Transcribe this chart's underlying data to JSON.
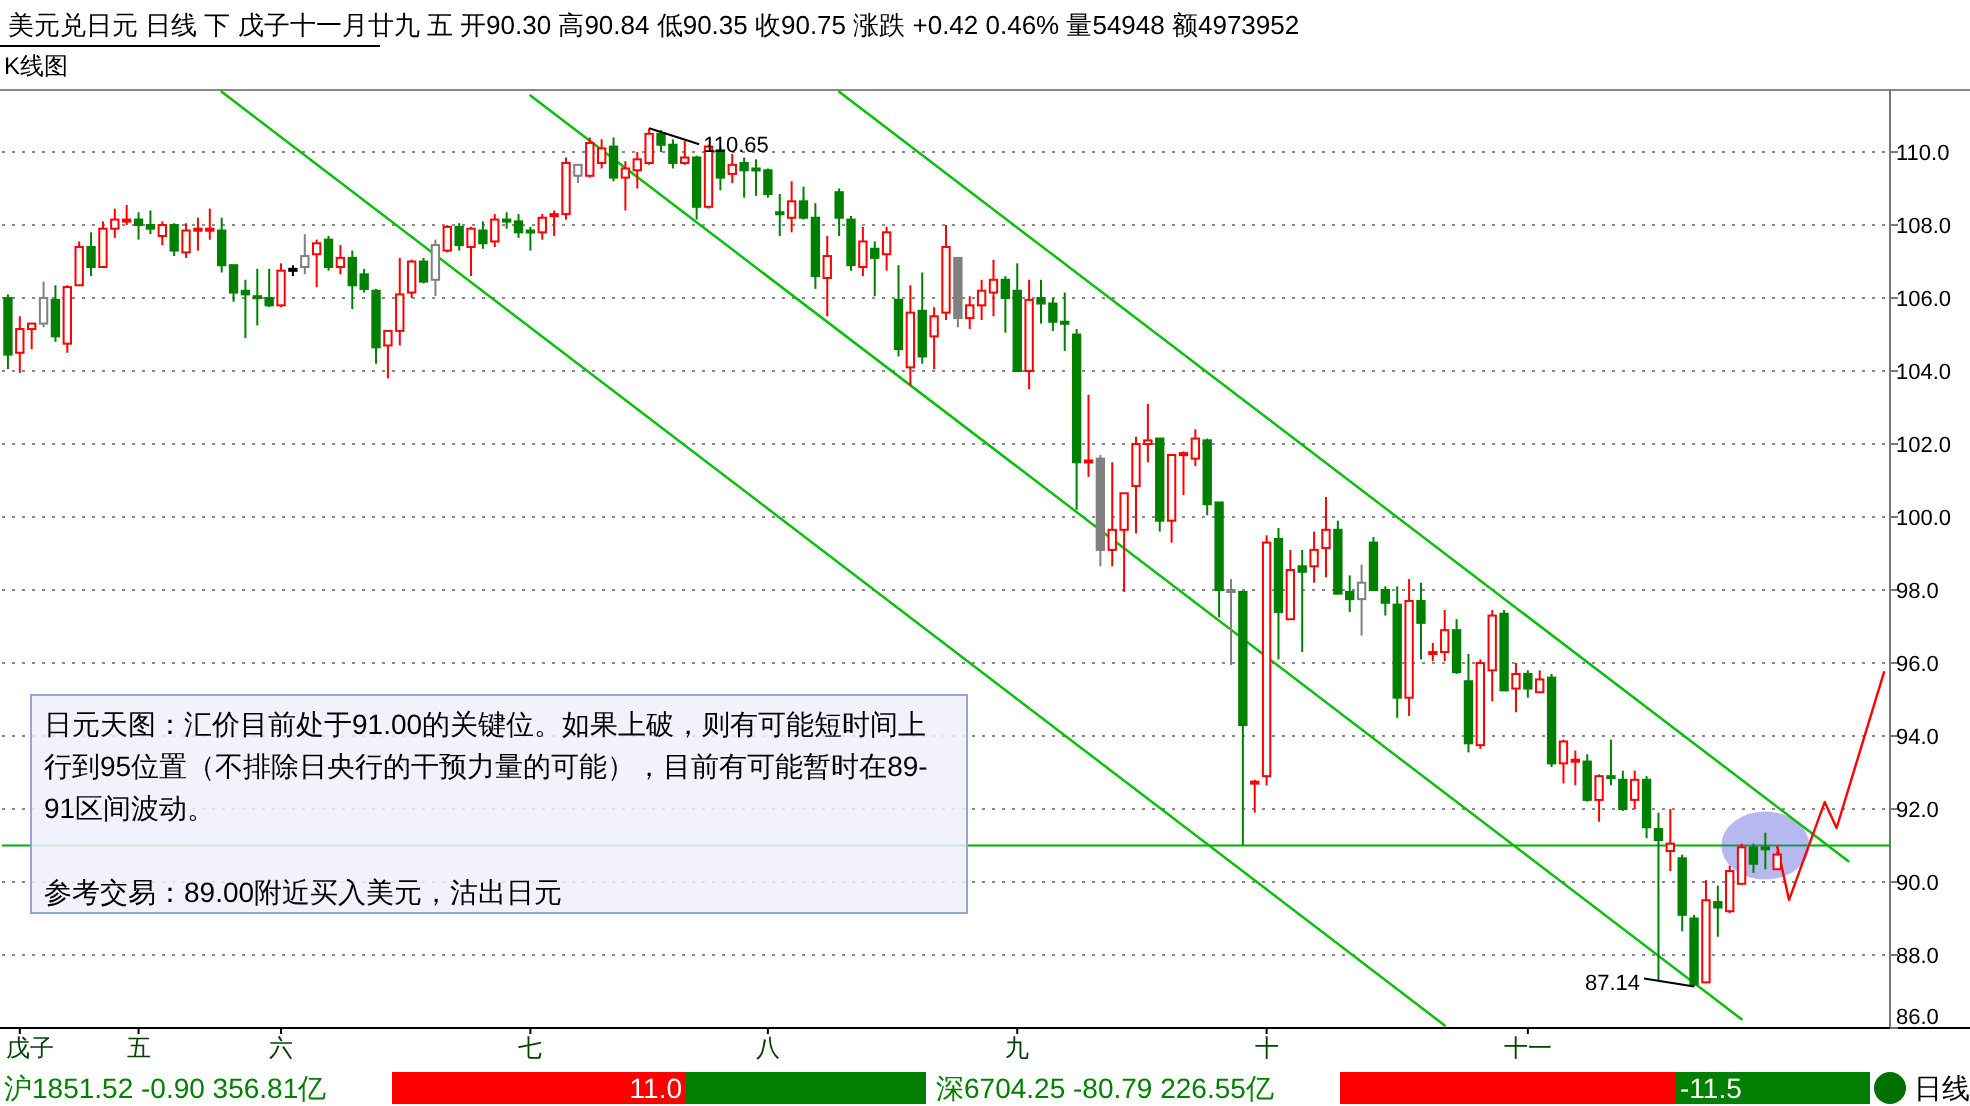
{
  "chart_data": {
    "type": "candlestick",
    "title": "美元兑日元  日线  下  戊子十一月廿九  五  开90.30 高90.84 低90.35 收90.75 涨跌  +0.42  0.46% 量54948 额4973952",
    "subtitle": "K线图",
    "categories": [
      null,
      "戊子",
      null,
      null,
      null,
      null,
      null,
      null,
      null,
      null,
      null,
      "五",
      null,
      null,
      null,
      null,
      null,
      null,
      null,
      null,
      null,
      null,
      null,
      "六",
      null,
      null,
      null,
      null,
      null,
      null,
      null,
      null,
      null,
      null,
      null,
      null,
      null,
      null,
      null,
      null,
      null,
      null,
      null,
      null,
      "七",
      null,
      null,
      null,
      null,
      null,
      null,
      null,
      null,
      null,
      null,
      null,
      null,
      null,
      null,
      null,
      null,
      null,
      null,
      null,
      "八",
      null,
      null,
      null,
      null,
      null,
      null,
      null,
      null,
      null,
      null,
      null,
      null,
      null,
      null,
      null,
      null,
      null,
      null,
      null,
      null,
      "九",
      null,
      null,
      null,
      null,
      null,
      null,
      null,
      null,
      null,
      null,
      null,
      null,
      null,
      null,
      null,
      null,
      null,
      null,
      null,
      null,
      "十",
      null,
      null,
      null,
      null,
      null,
      null,
      null,
      null,
      null,
      null,
      null,
      null,
      null,
      null,
      null,
      null,
      null,
      null,
      null,
      null,
      null,
      "十一",
      null,
      null,
      null,
      null,
      null,
      null,
      null,
      null,
      null,
      null,
      null,
      null,
      null,
      null,
      null,
      null,
      null,
      null,
      null,
      null,
      null,
      null,
      null,
      null,
      null,
      null,
      null,
      null,
      null,
      null
    ],
    "ohlc": [
      [
        106.0,
        106.1,
        104.05,
        104.45
      ],
      [
        104.5,
        105.5,
        103.95,
        105.15
      ],
      [
        105.15,
        105.3,
        104.6,
        105.3
      ],
      [
        105.3,
        106.45,
        105.2,
        106.0
      ],
      [
        105.95,
        106.35,
        104.8,
        104.95
      ],
      [
        104.75,
        106.35,
        104.5,
        106.3
      ],
      [
        106.35,
        107.55,
        106.35,
        107.4
      ],
      [
        107.4,
        107.8,
        106.6,
        106.85
      ],
      [
        106.85,
        108.1,
        106.85,
        107.9
      ],
      [
        107.9,
        108.45,
        107.65,
        108.15
      ],
      [
        108.1,
        108.55,
        108.0,
        108.15
      ],
      [
        108.15,
        108.35,
        107.6,
        108.0
      ],
      [
        108.0,
        108.4,
        107.75,
        107.9
      ],
      [
        107.7,
        108.1,
        107.45,
        108.0
      ],
      [
        108.0,
        108.05,
        107.15,
        107.3
      ],
      [
        107.25,
        108.05,
        107.1,
        107.85
      ],
      [
        107.85,
        108.2,
        107.3,
        107.9
      ],
      [
        107.85,
        108.45,
        107.6,
        107.9
      ],
      [
        107.85,
        108.2,
        106.7,
        106.9
      ],
      [
        106.9,
        106.9,
        105.9,
        106.15
      ],
      [
        106.2,
        106.5,
        104.9,
        106.1
      ],
      [
        106.05,
        106.8,
        105.25,
        106.0
      ],
      [
        106.0,
        106.8,
        105.75,
        105.8
      ],
      [
        105.8,
        106.95,
        105.75,
        106.75
      ],
      [
        106.75,
        106.9,
        106.6,
        106.8
      ],
      [
        106.85,
        107.75,
        106.65,
        107.15
      ],
      [
        107.2,
        107.6,
        106.3,
        107.5
      ],
      [
        107.6,
        107.7,
        106.75,
        106.85
      ],
      [
        106.85,
        107.45,
        106.65,
        107.1
      ],
      [
        107.1,
        107.3,
        105.7,
        106.35
      ],
      [
        106.65,
        106.8,
        106.15,
        106.25
      ],
      [
        106.2,
        106.25,
        104.2,
        104.65
      ],
      [
        104.7,
        105.1,
        103.8,
        105.1
      ],
      [
        105.1,
        107.1,
        104.7,
        106.1
      ],
      [
        106.15,
        107.05,
        106.0,
        107.0
      ],
      [
        107.0,
        107.1,
        106.4,
        106.45
      ],
      [
        106.5,
        107.6,
        106.05,
        107.45
      ],
      [
        107.3,
        108.0,
        107.25,
        107.95
      ],
      [
        107.95,
        108.05,
        107.3,
        107.45
      ],
      [
        107.4,
        107.95,
        106.6,
        107.9
      ],
      [
        107.85,
        108.1,
        107.35,
        107.5
      ],
      [
        107.55,
        108.3,
        107.4,
        108.15
      ],
      [
        108.15,
        108.35,
        107.9,
        108.1
      ],
      [
        108.1,
        108.3,
        107.65,
        107.8
      ],
      [
        107.85,
        107.95,
        107.3,
        107.8
      ],
      [
        107.8,
        108.3,
        107.6,
        108.2
      ],
      [
        108.25,
        108.4,
        107.7,
        108.3
      ],
      [
        108.3,
        109.85,
        108.15,
        109.7
      ],
      [
        109.35,
        109.65,
        109.15,
        109.65
      ],
      [
        109.35,
        110.4,
        109.3,
        110.25
      ],
      [
        109.7,
        110.35,
        109.55,
        110.1
      ],
      [
        110.15,
        110.4,
        109.2,
        109.3
      ],
      [
        109.3,
        109.75,
        108.4,
        109.55
      ],
      [
        109.5,
        110.0,
        109.0,
        109.8
      ],
      [
        109.7,
        110.65,
        109.65,
        110.5
      ],
      [
        110.5,
        110.6,
        110.0,
        110.2
      ],
      [
        110.2,
        110.35,
        109.55,
        109.7
      ],
      [
        109.7,
        110.3,
        109.65,
        109.85
      ],
      [
        109.85,
        109.9,
        108.15,
        108.5
      ],
      [
        108.5,
        110.2,
        108.45,
        110.15
      ],
      [
        110.05,
        110.15,
        108.95,
        109.3
      ],
      [
        109.4,
        109.95,
        109.15,
        109.65
      ],
      [
        109.7,
        109.85,
        108.75,
        109.5
      ],
      [
        109.55,
        109.8,
        108.8,
        109.5
      ],
      [
        109.5,
        109.55,
        108.75,
        108.85
      ],
      [
        108.35,
        108.85,
        107.7,
        108.3
      ],
      [
        108.2,
        109.2,
        107.8,
        108.65
      ],
      [
        108.65,
        109.05,
        108.15,
        108.2
      ],
      [
        108.2,
        108.6,
        106.25,
        106.6
      ],
      [
        106.55,
        107.7,
        105.5,
        107.15
      ],
      [
        108.9,
        109.0,
        107.7,
        108.2
      ],
      [
        108.15,
        108.25,
        106.75,
        106.9
      ],
      [
        106.85,
        107.95,
        106.6,
        107.55
      ],
      [
        107.35,
        107.55,
        106.05,
        107.1
      ],
      [
        107.2,
        107.95,
        106.75,
        107.8
      ],
      [
        105.95,
        106.9,
        104.4,
        104.6
      ],
      [
        104.1,
        106.35,
        103.6,
        105.6
      ],
      [
        105.65,
        106.7,
        104.2,
        104.4
      ],
      [
        104.95,
        105.75,
        104.05,
        105.5
      ],
      [
        105.6,
        108.0,
        105.4,
        107.4
      ],
      [
        107.1,
        107.1,
        105.2,
        105.45
      ],
      [
        105.45,
        106.05,
        105.15,
        105.8
      ],
      [
        105.8,
        106.5,
        105.4,
        106.2
      ],
      [
        106.15,
        107.05,
        105.5,
        106.5
      ],
      [
        106.5,
        106.6,
        105.05,
        106.0
      ],
      [
        106.2,
        106.95,
        104.0,
        104.0
      ],
      [
        104.0,
        106.5,
        103.5,
        105.95
      ],
      [
        106.0,
        106.5,
        105.3,
        105.85
      ],
      [
        105.85,
        106.0,
        105.1,
        105.35
      ],
      [
        105.35,
        106.15,
        104.55,
        105.3
      ],
      [
        105.0,
        105.15,
        100.2,
        101.5
      ],
      [
        101.5,
        103.35,
        101.1,
        101.55
      ],
      [
        101.6,
        101.7,
        98.65,
        99.1
      ],
      [
        99.1,
        101.5,
        98.65,
        99.65
      ],
      [
        99.65,
        100.65,
        97.95,
        100.65
      ],
      [
        100.85,
        102.2,
        99.55,
        102.0
      ],
      [
        102.0,
        103.1,
        101.5,
        102.1
      ],
      [
        102.15,
        102.15,
        99.6,
        99.9
      ],
      [
        99.9,
        101.7,
        99.3,
        101.7
      ],
      [
        101.7,
        101.8,
        100.6,
        101.75
      ],
      [
        101.6,
        102.4,
        101.4,
        102.15
      ],
      [
        102.1,
        102.15,
        100.05,
        100.35
      ],
      [
        100.4,
        100.4,
        97.25,
        98.0
      ],
      [
        98.0,
        98.3,
        95.95,
        97.95
      ],
      [
        97.95,
        97.95,
        91.0,
        94.3
      ],
      [
        92.7,
        92.8,
        91.9,
        92.75
      ],
      [
        92.9,
        99.5,
        92.65,
        99.3
      ],
      [
        99.4,
        99.7,
        96.1,
        97.4
      ],
      [
        97.2,
        99.1,
        97.2,
        98.55
      ],
      [
        98.65,
        99.1,
        96.3,
        98.5
      ],
      [
        98.65,
        99.6,
        98.2,
        99.1
      ],
      [
        99.15,
        100.55,
        98.35,
        99.65
      ],
      [
        99.65,
        99.9,
        97.9,
        97.9
      ],
      [
        97.95,
        98.4,
        97.4,
        97.75
      ],
      [
        97.75,
        98.7,
        96.75,
        98.2
      ],
      [
        99.3,
        99.45,
        98.0,
        98.0
      ],
      [
        98.0,
        98.1,
        97.3,
        97.65
      ],
      [
        97.6,
        98.1,
        94.5,
        95.05
      ],
      [
        95.05,
        98.3,
        94.55,
        97.7
      ],
      [
        97.7,
        98.2,
        96.1,
        97.1
      ],
      [
        96.25,
        96.55,
        96.05,
        96.3
      ],
      [
        96.3,
        97.45,
        96.05,
        96.9
      ],
      [
        96.9,
        97.2,
        95.7,
        95.75
      ],
      [
        95.5,
        96.25,
        93.55,
        93.8
      ],
      [
        93.75,
        96.1,
        93.65,
        96.0
      ],
      [
        95.8,
        97.45,
        94.95,
        97.3
      ],
      [
        97.35,
        97.45,
        95.25,
        95.25
      ],
      [
        95.3,
        96.0,
        94.65,
        95.7
      ],
      [
        95.7,
        95.8,
        95.05,
        95.3
      ],
      [
        95.2,
        95.8,
        95.2,
        95.55
      ],
      [
        95.6,
        95.7,
        93.15,
        93.25
      ],
      [
        93.25,
        93.9,
        92.7,
        93.85
      ],
      [
        93.3,
        93.6,
        92.65,
        93.35
      ],
      [
        93.3,
        93.5,
        92.2,
        92.25
      ],
      [
        92.25,
        92.95,
        91.65,
        92.9
      ],
      [
        92.9,
        93.9,
        92.65,
        92.85
      ],
      [
        92.8,
        93.05,
        91.95,
        92.0
      ],
      [
        92.25,
        93.05,
        92.0,
        92.8
      ],
      [
        92.8,
        92.9,
        91.2,
        91.5
      ],
      [
        91.45,
        91.9,
        87.3,
        91.15
      ],
      [
        90.85,
        92.0,
        90.3,
        91.05
      ],
      [
        90.65,
        90.75,
        88.65,
        89.1
      ],
      [
        89.0,
        89.1,
        87.14,
        87.2
      ],
      [
        87.25,
        90.05,
        87.25,
        89.5
      ],
      [
        89.45,
        89.9,
        88.5,
        89.3
      ],
      [
        89.2,
        90.45,
        89.15,
        90.3
      ],
      [
        89.95,
        91.05,
        89.95,
        90.95
      ],
      [
        90.95,
        91.05,
        90.25,
        90.5
      ],
      [
        90.95,
        91.35,
        90.35,
        90.9
      ],
      [
        90.35,
        90.84,
        90.35,
        90.75
      ],
      null,
      null,
      null,
      null,
      null,
      null,
      null,
      null,
      null
    ],
    "colors": [
      "#008000",
      "#ff0000",
      "#ff0000",
      "#808080",
      "#008000",
      "#ff0000",
      "#ff0000",
      "#008000",
      "#ff0000",
      "#ff0000",
      "#ff0000",
      "#008000",
      "#008000",
      "#ff0000",
      "#008000",
      "#ff0000",
      "#ff0000",
      "#ff0000",
      "#008000",
      "#008000",
      "#008000",
      "#008000",
      "#008000",
      "#ff0000",
      "#000000",
      "#808080",
      "#ff0000",
      "#008000",
      "#ff0000",
      "#008000",
      "#008000",
      "#008000",
      "#ff0000",
      "#ff0000",
      "#ff0000",
      "#008000",
      "#808080",
      "#ff0000",
      "#008000",
      "#ff0000",
      "#008000",
      "#ff0000",
      "#008000",
      "#008000",
      "#008000",
      "#ff0000",
      "#ff0000",
      "#ff0000",
      "#808080",
      "#ff0000",
      "#ff0000",
      "#008000",
      "#ff0000",
      "#ff0000",
      "#ff0000",
      "#008000",
      "#008000",
      "#ff0000",
      "#008000",
      "#ff0000",
      "#008000",
      "#ff0000",
      "#008000",
      "#008000",
      "#008000",
      "#008000",
      "#ff0000",
      "#008000",
      "#008000",
      "#ff0000",
      "#008000",
      "#008000",
      "#ff0000",
      "#008000",
      "#ff0000",
      "#008000",
      "#ff0000",
      "#008000",
      "#ff0000",
      "#ff0000",
      "#808080",
      "#ff0000",
      "#ff0000",
      "#ff0000",
      "#008000",
      "#008000",
      "#ff0000",
      "#008000",
      "#008000",
      "#008000",
      "#008000",
      "#ff0000",
      "#808080",
      "#ff0000",
      "#ff0000",
      "#ff0000",
      "#ff0000",
      "#008000",
      "#ff0000",
      "#ff0000",
      "#ff0000",
      "#008000",
      "#008000",
      "#808080",
      "#008000",
      "#ff0000",
      "#ff0000",
      "#008000",
      "#ff0000",
      "#008000",
      "#ff0000",
      "#ff0000",
      "#008000",
      "#008000",
      "#808080",
      "#008000",
      "#008000",
      "#008000",
      "#ff0000",
      "#008000",
      "#ff0000",
      "#ff0000",
      "#008000",
      "#008000",
      "#ff0000",
      "#ff0000",
      "#008000",
      "#ff0000",
      "#008000",
      "#ff0000",
      "#008000",
      "#ff0000",
      "#ff0000",
      "#008000",
      "#ff0000",
      "#008000",
      "#008000",
      "#ff0000",
      "#008000",
      "#008000",
      "#ff0000",
      "#008000",
      "#008000",
      "#ff0000",
      "#008000",
      "#ff0000",
      "#ff0000",
      "#008000",
      "#008000",
      "#ff0000",
      null,
      null,
      null,
      null,
      null,
      null,
      null,
      null,
      null
    ],
    "series": [
      {
        "type": "line",
        "color": "#00c000",
        "values": [
          null,
          null,
          null,
          null,
          null,
          null,
          null,
          null,
          null,
          null,
          null,
          null,
          null,
          null,
          null,
          null,
          null,
          null,
          111.65,
          null,
          null,
          null,
          null,
          null,
          null,
          null,
          null,
          null,
          null,
          null,
          null,
          null,
          null,
          null,
          null,
          null,
          null,
          null,
          null,
          null,
          null,
          null,
          null,
          null,
          null,
          null,
          null,
          null,
          null,
          null,
          null,
          null,
          null,
          null,
          null,
          null,
          null,
          null,
          null,
          null,
          null,
          null,
          null,
          null,
          null,
          null,
          null,
          null,
          null,
          null,
          null,
          null,
          null,
          null,
          null,
          null,
          null,
          null,
          null,
          null,
          null,
          null,
          null,
          null,
          null,
          null,
          null,
          null,
          null,
          null,
          null,
          null,
          null,
          null,
          null,
          null,
          null,
          null,
          null,
          null,
          null,
          null,
          null,
          null,
          null,
          null,
          null,
          null,
          null,
          null,
          null,
          null,
          null,
          null,
          null,
          null,
          null,
          null,
          null,
          null,
          null,
          86.07,
          null,
          null,
          null,
          null,
          null,
          null,
          null,
          null,
          null,
          null,
          null,
          null,
          null,
          null,
          null,
          null,
          null,
          null,
          null,
          null,
          null,
          null,
          null,
          null,
          null,
          null,
          null,
          null,
          null,
          null,
          null,
          null,
          null,
          null,
          null,
          null,
          null
        ]
      },
      {
        "type": "line",
        "color": "#00c000",
        "values": [
          null,
          null,
          null,
          null,
          null,
          null,
          null,
          null,
          null,
          null,
          null,
          null,
          null,
          null,
          null,
          null,
          null,
          null,
          null,
          null,
          null,
          null,
          null,
          null,
          null,
          null,
          null,
          null,
          null,
          null,
          null,
          null,
          null,
          null,
          null,
          null,
          null,
          null,
          null,
          null,
          null,
          null,
          null,
          null,
          111.55,
          null,
          null,
          null,
          null,
          null,
          null,
          null,
          null,
          null,
          null,
          null,
          null,
          null,
          null,
          null,
          null,
          null,
          null,
          null,
          null,
          null,
          null,
          null,
          null,
          null,
          null,
          null,
          null,
          null,
          null,
          null,
          null,
          null,
          null,
          null,
          null,
          null,
          null,
          null,
          null,
          null,
          null,
          null,
          null,
          null,
          null,
          null,
          null,
          null,
          null,
          null,
          null,
          null,
          null,
          null,
          null,
          null,
          null,
          null,
          null,
          null,
          null,
          null,
          null,
          null,
          null,
          null,
          null,
          null,
          null,
          null,
          null,
          null,
          null,
          null,
          null,
          null,
          null,
          null,
          null,
          null,
          null,
          null,
          null,
          null,
          null,
          null,
          null,
          null,
          null,
          null,
          null,
          null,
          null,
          null,
          null,
          null,
          null,
          null,
          null,
          null,
          86.24,
          null,
          null,
          null,
          null,
          null,
          null,
          null,
          null,
          null,
          null,
          null,
          null
        ]
      },
      {
        "type": "line",
        "color": "#00c000",
        "values": [
          null,
          null,
          null,
          null,
          null,
          null,
          null,
          null,
          null,
          null,
          null,
          null,
          null,
          null,
          null,
          null,
          null,
          null,
          null,
          null,
          null,
          null,
          null,
          null,
          null,
          null,
          null,
          null,
          null,
          null,
          null,
          null,
          null,
          null,
          null,
          null,
          null,
          null,
          null,
          null,
          null,
          null,
          null,
          null,
          null,
          null,
          null,
          null,
          null,
          null,
          null,
          null,
          null,
          null,
          null,
          null,
          null,
          null,
          null,
          null,
          null,
          null,
          null,
          null,
          null,
          null,
          null,
          null,
          null,
          null,
          111.65,
          null,
          null,
          null,
          null,
          null,
          null,
          null,
          null,
          null,
          null,
          null,
          null,
          null,
          null,
          null,
          null,
          null,
          null,
          null,
          null,
          null,
          null,
          null,
          null,
          null,
          null,
          null,
          null,
          null,
          null,
          null,
          null,
          null,
          null,
          null,
          null,
          null,
          null,
          null,
          null,
          null,
          null,
          null,
          null,
          null,
          null,
          null,
          null,
          null,
          null,
          null,
          null,
          null,
          null,
          null,
          null,
          null,
          null,
          null,
          null,
          null,
          null,
          null,
          null,
          null,
          null,
          null,
          null,
          null,
          null,
          null,
          null,
          null,
          null,
          null,
          null,
          null,
          null,
          null,
          null,
          null,
          null,
          null,
          null,
          90.57,
          null,
          null,
          null
        ]
      },
      {
        "type": "line",
        "color": "#ff0000",
        "values": [
          null,
          null,
          null,
          null,
          null,
          null,
          null,
          null,
          null,
          null,
          null,
          null,
          null,
          null,
          null,
          null,
          null,
          null,
          null,
          null,
          null,
          null,
          null,
          null,
          null,
          null,
          null,
          null,
          null,
          null,
          null,
          null,
          null,
          null,
          null,
          null,
          null,
          null,
          null,
          null,
          null,
          null,
          null,
          null,
          null,
          null,
          null,
          null,
          null,
          null,
          null,
          null,
          null,
          null,
          null,
          null,
          null,
          null,
          null,
          null,
          null,
          null,
          null,
          null,
          null,
          null,
          null,
          null,
          null,
          null,
          null,
          null,
          null,
          null,
          null,
          null,
          null,
          null,
          null,
          null,
          null,
          null,
          null,
          null,
          null,
          null,
          null,
          null,
          null,
          null,
          null,
          null,
          null,
          null,
          null,
          null,
          null,
          null,
          null,
          null,
          null,
          null,
          null,
          null,
          null,
          null,
          null,
          null,
          null,
          null,
          null,
          null,
          null,
          null,
          null,
          null,
          null,
          null,
          null,
          null,
          null,
          null,
          null,
          null,
          null,
          null,
          null,
          null,
          null,
          null,
          null,
          null,
          null,
          null,
          null,
          null,
          null,
          null,
          null,
          null,
          null,
          null,
          null,
          null,
          null,
          null,
          null,
          null,
          null,
          90.97,
          89.51,
          null,
          null,
          92.19,
          91.48,
          null,
          null,
          null,
          95.75
        ]
      }
    ],
    "ref_lines": [
      {
        "axis": "y",
        "value": 91.0,
        "color": "#00b000"
      }
    ],
    "ylim": [
      86,
      111.7
    ],
    "yticks": [
      {
        "value": 86,
        "label": "86.0"
      },
      {
        "value": 88,
        "label": "88.0"
      },
      {
        "value": 90,
        "label": "90.0"
      },
      {
        "value": 92,
        "label": "92.0"
      },
      {
        "value": 94,
        "label": "94.0"
      },
      {
        "value": 96,
        "label": "96.0"
      },
      {
        "value": 98,
        "label": "98.0"
      },
      {
        "value": 100,
        "label": "100.0"
      },
      {
        "value": 102,
        "label": "102.0"
      },
      {
        "value": 104,
        "label": "104.0"
      },
      {
        "value": 106,
        "label": "106.0"
      },
      {
        "value": 108,
        "label": "108.0"
      },
      {
        "value": 110,
        "label": "110.0"
      }
    ],
    "grid": "y",
    "annotations": [
      "110.65",
      "87.14",
      "日元天图：汇价目前处于91.00的关键位。如果上破，则有可能短时间上行到95位置（不排除日央行的干预力量的可能），目前有可能暂时在89-91区间波动。",
      "参考交易：89.00附近买入美元，沽出日元",
      "沪1851.52 -0.90 356.81亿",
      "11.0",
      "深6704.25 -80.79 226.55亿",
      "-11.5",
      "日线"
    ]
  }
}
